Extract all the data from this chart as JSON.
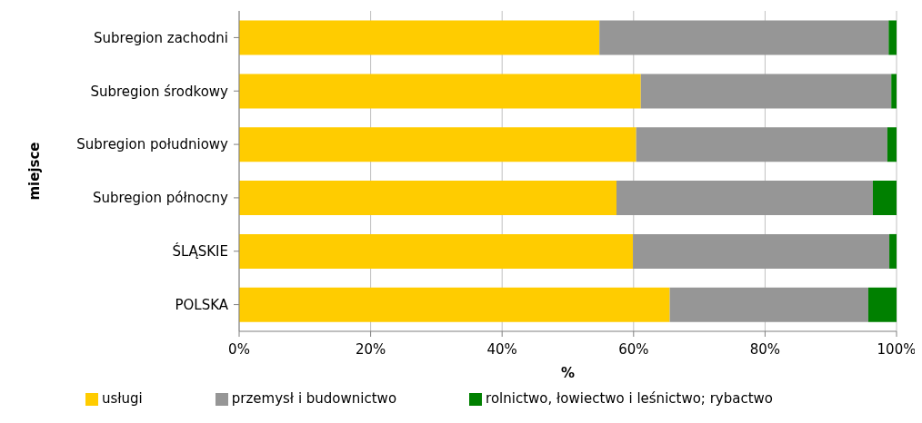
{
  "chart_data": {
    "type": "bar",
    "orientation": "horizontal",
    "stacked": true,
    "ylabel": "miejsce",
    "xlabel": "%",
    "categories": [
      "Subregion zachodni",
      "Subregion środkowy",
      "Subregion południowy",
      "Subregion północny",
      "ŚLĄSKIE",
      "POLSKA"
    ],
    "series": [
      {
        "name": "usługi",
        "color": "#ffcc00",
        "values": [
          54.8,
          61.1,
          60.4,
          57.4,
          59.9,
          65.5
        ]
      },
      {
        "name": "przemysł i budownictwo",
        "color": "#969696",
        "values": [
          44.0,
          38.1,
          38.2,
          39.0,
          39.0,
          30.2
        ]
      },
      {
        "name": "rolnictwo, łowiectwo i leśnictwo; rybactwo",
        "color": "#008000",
        "values": [
          1.2,
          0.8,
          1.4,
          3.6,
          1.1,
          4.3
        ]
      }
    ],
    "xlim": [
      0,
      100
    ],
    "xticks": [
      {
        "value": 0,
        "label": "0%"
      },
      {
        "value": 20,
        "label": "20%"
      },
      {
        "value": 40,
        "label": "40%"
      },
      {
        "value": 60,
        "label": "60%"
      },
      {
        "value": 80,
        "label": "80%"
      },
      {
        "value": 100,
        "label": "100%"
      }
    ],
    "grid": "x",
    "legend": "bottom"
  }
}
